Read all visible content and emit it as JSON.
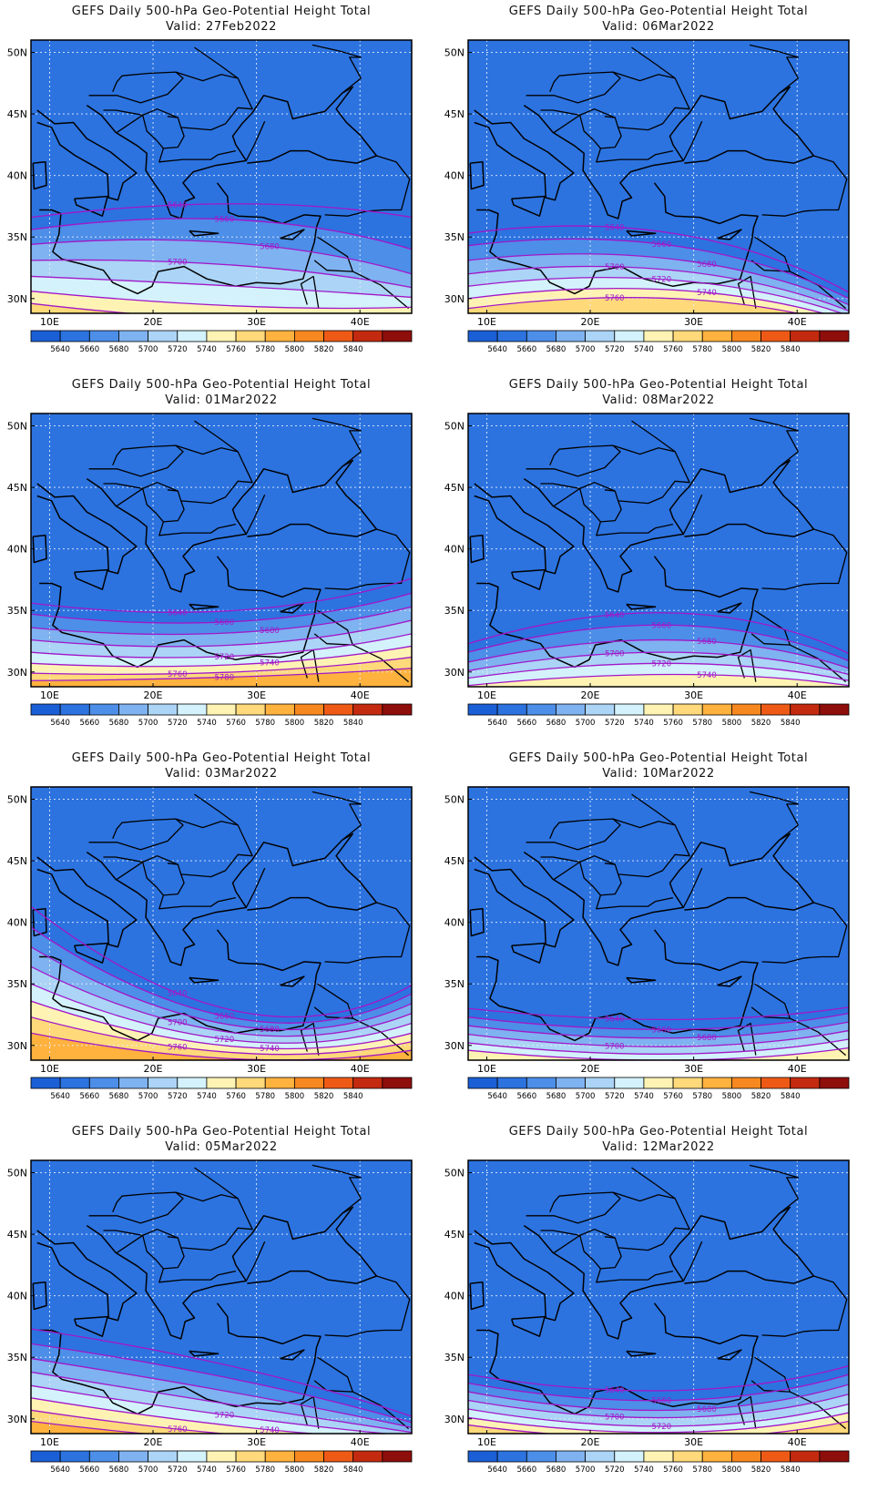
{
  "title_prefix": "GEFS Daily 500-hPa Geo-Potential Height Total",
  "lat_labels": [
    "50N",
    "45N",
    "40N",
    "35N",
    "30N"
  ],
  "lon_labels": [
    "10E",
    "20E",
    "30E",
    "40E"
  ],
  "colorbar": {
    "labels": [
      "5640",
      "5660",
      "5680",
      "5700",
      "5720",
      "5740",
      "5760",
      "5780",
      "5800",
      "5820",
      "5840"
    ],
    "colors": [
      "#1a5fd6",
      "#2c73e0",
      "#4c8ee8",
      "#7fb2f0",
      "#abd4f6",
      "#d3f2fb",
      "#fff3b4",
      "#ffd97a",
      "#ffb23e",
      "#f7881f",
      "#ee5a16",
      "#c42a0f",
      "#8e0e0b"
    ]
  },
  "panels": [
    {
      "title": "GEFS Daily 500-hPa Geo-Potential Height Total",
      "valid": "Valid: 27Feb2022",
      "contours": [
        {
          "value": 5640,
          "y0": 36.6,
          "y1": 37.7,
          "y2": 36.6,
          "labeled": true
        },
        {
          "value": 5660,
          "y0": 35.6,
          "y1": 36.4,
          "y2": 34.0,
          "labeled": true
        },
        {
          "value": 5680,
          "y0": 34.4,
          "y1": 34.5,
          "y2": 32.0,
          "labeled": true
        },
        {
          "value": 5700,
          "y0": 33.1,
          "y1": 32.7,
          "y2": 30.9,
          "labeled": true
        },
        {
          "value": 5720,
          "y0": 31.8,
          "y1": 31.0,
          "y2": 30.1,
          "labeled": false
        },
        {
          "value": 5740,
          "y0": 30.6,
          "y1": 29.4,
          "y2": 29.3,
          "labeled": false
        },
        {
          "value": 5760,
          "y0": 29.6,
          "y1": 28.3,
          "y2": 28.6,
          "labeled": false
        },
        {
          "value": 5780,
          "y0": 28.8,
          "y1": 27.4,
          "y2": 28.2,
          "labeled": false
        }
      ]
    },
    {
      "title": "GEFS Daily 500-hPa Geo-Potential Height Total",
      "valid": "Valid: 06Mar2022",
      "contours": [
        {
          "value": 5640,
          "y0": 35.3,
          "y1": 35.3,
          "y2": 30.5,
          "labeled": true
        },
        {
          "value": 5660,
          "y0": 34.3,
          "y1": 34.3,
          "y2": 30.0,
          "labeled": true
        },
        {
          "value": 5680,
          "y0": 33.1,
          "y1": 33.2,
          "y2": 29.5,
          "labeled": true
        },
        {
          "value": 5700,
          "y0": 32.0,
          "y1": 32.3,
          "y2": 29.0,
          "labeled": true
        },
        {
          "value": 5720,
          "y0": 31.0,
          "y1": 31.5,
          "y2": 28.6,
          "labeled": true
        },
        {
          "value": 5740,
          "y0": 30.0,
          "y1": 30.7,
          "y2": 28.2,
          "labeled": true
        },
        {
          "value": 5760,
          "y0": 29.2,
          "y1": 30.0,
          "y2": 27.8,
          "labeled": true
        }
      ]
    },
    {
      "title": "GEFS Daily 500-hPa Geo-Potential Height Total",
      "valid": "Valid: 01Mar2022",
      "contours": [
        {
          "value": 5640,
          "y0": 35.6,
          "y1": 35.0,
          "y2": 37.6,
          "labeled": true
        },
        {
          "value": 5660,
          "y0": 34.7,
          "y1": 34.1,
          "y2": 36.4,
          "labeled": true
        },
        {
          "value": 5680,
          "y0": 33.6,
          "y1": 33.2,
          "y2": 35.3,
          "labeled": true
        },
        {
          "value": 5700,
          "y0": 32.6,
          "y1": 32.2,
          "y2": 34.2,
          "labeled": false
        },
        {
          "value": 5720,
          "y0": 31.6,
          "y1": 31.3,
          "y2": 33.1,
          "labeled": true
        },
        {
          "value": 5740,
          "y0": 30.7,
          "y1": 30.6,
          "y2": 32.1,
          "labeled": true
        },
        {
          "value": 5760,
          "y0": 29.9,
          "y1": 30.0,
          "y2": 31.2,
          "labeled": true
        },
        {
          "value": 5780,
          "y0": 29.3,
          "y1": 29.6,
          "y2": 30.3,
          "labeled": true
        }
      ]
    },
    {
      "title": "GEFS Daily 500-hPa Geo-Potential Height Total",
      "valid": "Valid: 08Mar2022",
      "contours": [
        {
          "value": 5640,
          "y0": 32.3,
          "y1": 34.8,
          "y2": 31.5,
          "labeled": true
        },
        {
          "value": 5660,
          "y0": 31.6,
          "y1": 33.8,
          "y2": 30.9,
          "labeled": true
        },
        {
          "value": 5680,
          "y0": 30.8,
          "y1": 32.6,
          "y2": 30.3,
          "labeled": true
        },
        {
          "value": 5700,
          "y0": 30.1,
          "y1": 31.6,
          "y2": 29.8,
          "labeled": true
        },
        {
          "value": 5720,
          "y0": 29.5,
          "y1": 30.7,
          "y2": 29.3,
          "labeled": true
        },
        {
          "value": 5740,
          "y0": 28.9,
          "y1": 29.8,
          "y2": 28.9,
          "labeled": true
        }
      ]
    },
    {
      "title": "GEFS Daily 500-hPa Geo-Potential Height Total",
      "valid": "Valid: 03Mar2022",
      "contours": [
        {
          "value": 5640,
          "y0": 41.3,
          "y1": 32.8,
          "y2": 34.9,
          "labeled": true
        },
        {
          "value": 5660,
          "y0": 39.6,
          "y1": 32.2,
          "y2": 34.2,
          "labeled": true
        },
        {
          "value": 5680,
          "y0": 38.0,
          "y1": 31.6,
          "y2": 33.4,
          "labeled": true
        },
        {
          "value": 5700,
          "y0": 36.4,
          "y1": 31.0,
          "y2": 32.6,
          "labeled": true
        },
        {
          "value": 5720,
          "y0": 35.0,
          "y1": 30.4,
          "y2": 31.8,
          "labeled": true
        },
        {
          "value": 5740,
          "y0": 33.6,
          "y1": 29.9,
          "y2": 31.0,
          "labeled": true
        },
        {
          "value": 5760,
          "y0": 32.3,
          "y1": 29.4,
          "y2": 30.3,
          "labeled": true
        },
        {
          "value": 5780,
          "y0": 31.0,
          "y1": 28.9,
          "y2": 29.6,
          "labeled": false
        }
      ]
    },
    {
      "title": "GEFS Daily 500-hPa Geo-Potential Height Total",
      "valid": "Valid: 10Mar2022",
      "contours": [
        {
          "value": 5640,
          "y0": 33.0,
          "y1": 32.1,
          "y2": 33.1,
          "labeled": true
        },
        {
          "value": 5660,
          "y0": 32.3,
          "y1": 31.3,
          "y2": 32.6,
          "labeled": true
        },
        {
          "value": 5680,
          "y0": 31.6,
          "y1": 30.6,
          "y2": 31.9,
          "labeled": true
        },
        {
          "value": 5700,
          "y0": 30.9,
          "y1": 29.9,
          "y2": 31.2,
          "labeled": true
        },
        {
          "value": 5720,
          "y0": 30.2,
          "y1": 29.3,
          "y2": 30.5,
          "labeled": false
        },
        {
          "value": 5740,
          "y0": 29.6,
          "y1": 28.8,
          "y2": 29.8,
          "labeled": false
        }
      ]
    },
    {
      "title": "GEFS Daily 500-hPa Geo-Potential Height Total",
      "valid": "Valid: 05Mar2022",
      "contours": [
        {
          "value": 5640,
          "y0": 37.3,
          "y1": 34.2,
          "y2": 30.2,
          "labeled": false
        },
        {
          "value": 5660,
          "y0": 36.1,
          "y1": 33.2,
          "y2": 29.7,
          "labeled": false
        },
        {
          "value": 5680,
          "y0": 34.9,
          "y1": 32.1,
          "y2": 29.3,
          "labeled": false
        },
        {
          "value": 5700,
          "y0": 33.8,
          "y1": 31.1,
          "y2": 28.9,
          "labeled": false
        },
        {
          "value": 5720,
          "y0": 32.7,
          "y1": 30.2,
          "y2": 28.6,
          "labeled": true
        },
        {
          "value": 5740,
          "y0": 31.7,
          "y1": 29.4,
          "y2": 28.3,
          "labeled": true
        },
        {
          "value": 5760,
          "y0": 30.7,
          "y1": 28.7,
          "y2": 28.0,
          "labeled": true
        },
        {
          "value": 5780,
          "y0": 29.8,
          "y1": 28.2,
          "y2": 27.8,
          "labeled": false
        }
      ]
    },
    {
      "title": "GEFS Daily 500-hPa Geo-Potential Height Total",
      "valid": "Valid: 12Mar2022",
      "contours": [
        {
          "value": 5640,
          "y0": 33.6,
          "y1": 32.3,
          "y2": 34.3,
          "labeled": true
        },
        {
          "value": 5660,
          "y0": 32.9,
          "y1": 31.5,
          "y2": 33.6,
          "labeled": true
        },
        {
          "value": 5680,
          "y0": 32.2,
          "y1": 30.7,
          "y2": 32.8,
          "labeled": true
        },
        {
          "value": 5700,
          "y0": 31.5,
          "y1": 30.1,
          "y2": 32.0,
          "labeled": true
        },
        {
          "value": 5720,
          "y0": 30.8,
          "y1": 29.4,
          "y2": 31.2,
          "labeled": true
        },
        {
          "value": 5740,
          "y0": 30.1,
          "y1": 28.9,
          "y2": 30.5,
          "labeled": false
        },
        {
          "value": 5760,
          "y0": 29.5,
          "y1": 28.4,
          "y2": 29.8,
          "labeled": false
        }
      ]
    }
  ]
}
